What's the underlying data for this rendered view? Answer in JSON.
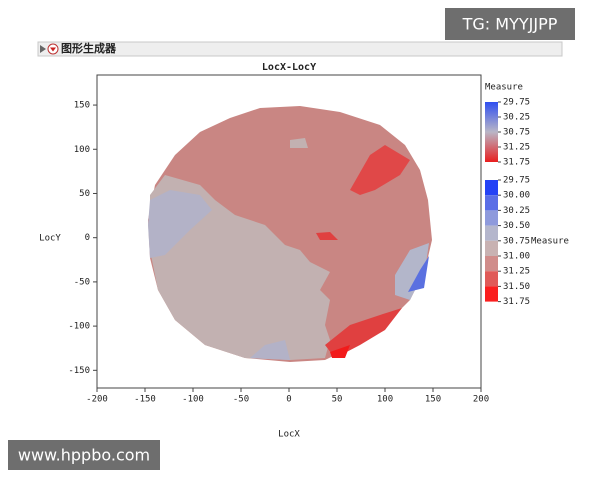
{
  "header": {
    "title": "图形生成器"
  },
  "watermarks": [
    "TG: MYYJJPP",
    "www.hppbo.com"
  ],
  "chart_data": {
    "type": "contour",
    "title": "LocX-LocY",
    "x_label": "LocX",
    "y_label": "LocY",
    "xlim": [
      -200,
      200
    ],
    "ylim": [
      -170,
      184
    ],
    "xticks": [
      -200,
      -150,
      -100,
      -50,
      0,
      50,
      100,
      150,
      200
    ],
    "yticks": [
      -150,
      -100,
      -50,
      0,
      50,
      100,
      150
    ],
    "legend": [
      {
        "title": "Measure",
        "levels": [
          29.75,
          30.25,
          30.75,
          31.25,
          31.75
        ],
        "gradient": [
          "#2f4ff0",
          "#b9b6c6",
          "#e81e1e"
        ]
      },
      {
        "title": "Measure",
        "levels": [
          29.75,
          {
            "value": 30.0,
            "label": "30.00"
          },
          30.25,
          {
            "value": 30.5,
            "label": "30.50"
          },
          30.75,
          {
            "value": 31.0,
            "label": "31.00"
          },
          31.25,
          {
            "value": 31.5,
            "label": "31.50"
          },
          31.75
        ],
        "colors": [
          "#2442f5",
          "#5a6ee6",
          "#8e9adc",
          "#b4b6cc",
          "#c8b2b2",
          "#d08c8a",
          "#e05a58",
          "#fa1e1e"
        ]
      }
    ]
  }
}
